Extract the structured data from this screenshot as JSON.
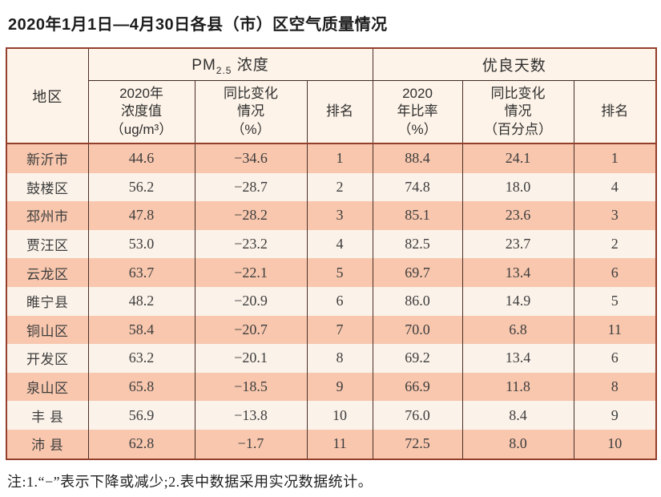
{
  "title": "2020年1月1日—4月30日各县（市）区空气质量情况",
  "note": "注:1.“−”表示下降或减少;2.表中数据采用实况数据统计。",
  "table": {
    "region_header": "地区",
    "groups": [
      {
        "prefix": "PM",
        "sub": "2.5",
        "suffix": " 浓度"
      },
      {
        "label": "优良天数"
      }
    ],
    "sub_columns": [
      {
        "lines": [
          "2020年",
          "浓度值",
          "（ug/m³）"
        ]
      },
      {
        "lines": [
          "同比变化",
          "情况",
          "（%）"
        ]
      },
      {
        "lines": [
          "排名"
        ]
      },
      {
        "lines": [
          "2020",
          "年比率",
          "（%）"
        ]
      },
      {
        "lines": [
          "同比变化",
          "情况",
          "（百分点）"
        ]
      },
      {
        "lines": [
          "排名"
        ]
      }
    ],
    "rows": [
      {
        "region": "新沂市",
        "pm25_value": "44.6",
        "pm25_change": "−34.6",
        "pm25_rank": "1",
        "good_ratio": "88.4",
        "good_change": "24.1",
        "good_rank": "1"
      },
      {
        "region": "鼓楼区",
        "pm25_value": "56.2",
        "pm25_change": "−28.7",
        "pm25_rank": "2",
        "good_ratio": "74.8",
        "good_change": "18.0",
        "good_rank": "4"
      },
      {
        "region": "邳州市",
        "pm25_value": "47.8",
        "pm25_change": "−28.2",
        "pm25_rank": "3",
        "good_ratio": "85.1",
        "good_change": "23.6",
        "good_rank": "3"
      },
      {
        "region": "贾汪区",
        "pm25_value": "53.0",
        "pm25_change": "−23.2",
        "pm25_rank": "4",
        "good_ratio": "82.5",
        "good_change": "23.7",
        "good_rank": "2"
      },
      {
        "region": "云龙区",
        "pm25_value": "63.7",
        "pm25_change": "−22.1",
        "pm25_rank": "5",
        "good_ratio": "69.7",
        "good_change": "13.4",
        "good_rank": "6"
      },
      {
        "region": "睢宁县",
        "pm25_value": "48.2",
        "pm25_change": "−20.9",
        "pm25_rank": "6",
        "good_ratio": "86.0",
        "good_change": "14.9",
        "good_rank": "5"
      },
      {
        "region": "铜山区",
        "pm25_value": "58.4",
        "pm25_change": "−20.7",
        "pm25_rank": "7",
        "good_ratio": "70.0",
        "good_change": "6.8",
        "good_rank": "11"
      },
      {
        "region": "开发区",
        "pm25_value": "63.2",
        "pm25_change": "−20.1",
        "pm25_rank": "8",
        "good_ratio": "69.2",
        "good_change": "13.4",
        "good_rank": "6"
      },
      {
        "region": "泉山区",
        "pm25_value": "65.8",
        "pm25_change": "−18.5",
        "pm25_rank": "9",
        "good_ratio": "66.9",
        "good_change": "11.8",
        "good_rank": "8"
      },
      {
        "region": "丰 县",
        "pm25_value": "56.9",
        "pm25_change": "−13.8",
        "pm25_rank": "10",
        "good_ratio": "76.0",
        "good_change": "8.4",
        "good_rank": "9"
      },
      {
        "region": "沛 县",
        "pm25_value": "62.8",
        "pm25_change": "−1.7",
        "pm25_rank": "11",
        "good_ratio": "72.5",
        "good_change": "8.0",
        "good_rank": "10"
      }
    ]
  },
  "colors": {
    "stripe_odd": "#f8c7ae",
    "stripe_even": "#fbf2e9",
    "header_bg": "#fdf3e8",
    "frame_border": "#943f2c",
    "inner_border": "#4a2f26",
    "text": "#3d3d3d"
  }
}
